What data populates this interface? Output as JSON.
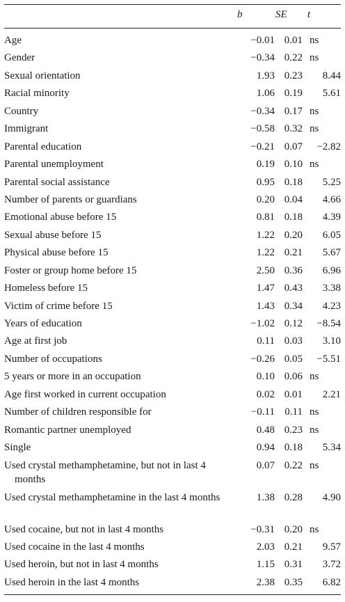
{
  "columns": {
    "b": "b",
    "se": "SE",
    "t": "t"
  },
  "rows": [
    {
      "label": "Age",
      "b": "−0.01",
      "se": "0.01",
      "t": "ns"
    },
    {
      "label": "Gender",
      "b": "−0.34",
      "se": "0.22",
      "t": "ns"
    },
    {
      "label": "Sexual orientation",
      "b": "1.93",
      "se": "0.23",
      "t": "8.44"
    },
    {
      "label": "Racial minority",
      "b": "1.06",
      "se": "0.19",
      "t": "5.61"
    },
    {
      "label": "Country",
      "b": "−0.34",
      "se": "0.17",
      "t": "ns"
    },
    {
      "label": "Immigrant",
      "b": "−0.58",
      "se": "0.32",
      "t": "ns"
    },
    {
      "label": "Parental education",
      "b": "−0.21",
      "se": "0.07",
      "t": "−2.82"
    },
    {
      "label": "Parental unemployment",
      "b": "0.19",
      "se": "0.10",
      "t": "ns"
    },
    {
      "label": "Parental social assistance",
      "b": "0.95",
      "se": "0.18",
      "t": "5.25"
    },
    {
      "label": "Number of parents or guardians",
      "b": "0.20",
      "se": "0.04",
      "t": "4.66"
    },
    {
      "label": "Emotional abuse before 15",
      "b": "0.81",
      "se": "0.18",
      "t": "4.39"
    },
    {
      "label": "Sexual abuse before 15",
      "b": "1.22",
      "se": "0.20",
      "t": "6.05"
    },
    {
      "label": "Physical abuse before 15",
      "b": "1.22",
      "se": "0.21",
      "t": "5.67"
    },
    {
      "label": "Foster or group home before 15",
      "b": "2.50",
      "se": "0.36",
      "t": "6.96"
    },
    {
      "label": "Homeless before 15",
      "b": "1.47",
      "se": "0.43",
      "t": "3.38"
    },
    {
      "label": "Victim of crime before 15",
      "b": "1.43",
      "se": "0.34",
      "t": "4.23"
    },
    {
      "label": "Years of education",
      "b": "−1.02",
      "se": "0.12",
      "t": "−8.54"
    },
    {
      "label": "Age at first job",
      "b": "0.11",
      "se": "0.03",
      "t": "3.10"
    },
    {
      "label": "Number of occupations",
      "b": "−0.26",
      "se": "0.05",
      "t": "−5.51"
    },
    {
      "label": "5 years or more in an occupation",
      "b": "0.10",
      "se": "0.06",
      "t": "ns"
    },
    {
      "label": "Age first worked in current occupation",
      "b": "0.02",
      "se": "0.01",
      "t": "2.21"
    },
    {
      "label": "Number of children responsible for",
      "b": "−0.11",
      "se": "0.11",
      "t": "ns"
    },
    {
      "label": "Romantic partner unemployed",
      "b": "0.48",
      "se": "0.23",
      "t": "ns"
    },
    {
      "label": "Single",
      "b": "0.94",
      "se": "0.18",
      "t": "5.34"
    },
    {
      "label": "Used crystal methamphetamine, but not in last 4 months",
      "b": "0.07",
      "se": "0.22",
      "t": "ns"
    },
    {
      "label": "Used crystal methamphetamine in the last 4 months",
      "b": "1.38",
      "se": "0.28",
      "t": "4.90"
    },
    {
      "label": "Used cocaine, but not in last 4 months",
      "b": "−0.31",
      "se": "0.20",
      "t": "ns"
    },
    {
      "label": "Used cocaine in the last 4 months",
      "b": "2.03",
      "se": "0.21",
      "t": "9.57"
    },
    {
      "label": "Used heroin, but not in last 4 months",
      "b": "1.15",
      "se": "0.31",
      "t": "3.72"
    },
    {
      "label": "Used heroin in the last 4 months",
      "b": "2.38",
      "se": "0.35",
      "t": "6.82"
    }
  ]
}
